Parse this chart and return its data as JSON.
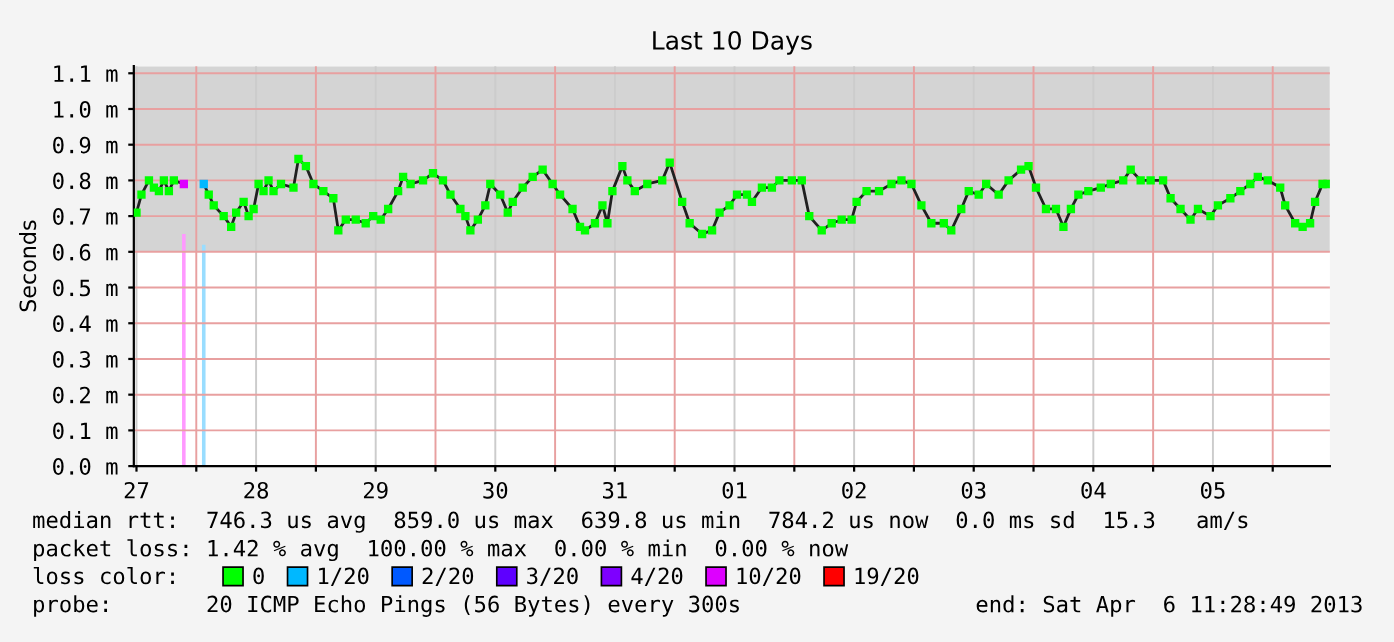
{
  "chart_data": {
    "type": "line",
    "title": "Last 10 Days",
    "ylabel": "Seconds",
    "legend_title": "loss color:",
    "xlim": [
      "2013-03-27T11:28",
      "2013-04-06T11:28"
    ],
    "ylim": [
      0,
      1.12
    ],
    "xticks": [
      {
        "value": "2013-03-27T12:00",
        "label": "27"
      },
      {
        "value": "2013-03-28T00:00",
        "label": null
      },
      {
        "value": "2013-03-28T12:00",
        "label": "28"
      },
      {
        "value": "2013-03-29T00:00",
        "label": null
      },
      {
        "value": "2013-03-29T12:00",
        "label": "29"
      },
      {
        "value": "2013-03-30T00:00",
        "label": null
      },
      {
        "value": "2013-03-30T12:00",
        "label": "30"
      },
      {
        "value": "2013-03-31T00:00",
        "label": null
      },
      {
        "value": "2013-03-31T12:00",
        "label": "31"
      },
      {
        "value": "2013-04-01T00:00",
        "label": null
      },
      {
        "value": "2013-04-01T12:00",
        "label": "01"
      },
      {
        "value": "2013-04-02T00:00",
        "label": null
      },
      {
        "value": "2013-04-02T12:00",
        "label": "02"
      },
      {
        "value": "2013-04-03T00:00",
        "label": null
      },
      {
        "value": "2013-04-03T12:00",
        "label": "03"
      },
      {
        "value": "2013-04-04T00:00",
        "label": null
      },
      {
        "value": "2013-04-04T12:00",
        "label": "04"
      },
      {
        "value": "2013-04-05T00:00",
        "label": null
      },
      {
        "value": "2013-04-05T12:00",
        "label": "05"
      },
      {
        "value": "2013-04-06T00:00",
        "label": null
      }
    ],
    "yticks": [
      {
        "value": 0,
        "label": "0.0 m"
      },
      {
        "value": 0.1,
        "label": "0.1 m"
      },
      {
        "value": 0.2,
        "label": "0.2 m"
      },
      {
        "value": 0.3,
        "label": "0.3 m"
      },
      {
        "value": 0.4,
        "label": "0.4 m"
      },
      {
        "value": 0.5,
        "label": "0.5 m"
      },
      {
        "value": 0.6,
        "label": "0.6 m"
      },
      {
        "value": 0.7,
        "label": "0.7 m"
      },
      {
        "value": 0.8,
        "label": "0.8 m"
      },
      {
        "value": 0.9,
        "label": "0.9 m"
      },
      {
        "value": 1.0,
        "label": "1.0 m"
      },
      {
        "value": 1.1,
        "label": "1.1 m"
      }
    ],
    "grid": true,
    "legend": "bottom",
    "bands": [
      {
        "axis": "y",
        "from": 0.6,
        "to": 1.12,
        "color": "#d4d4d4"
      }
    ],
    "series": [
      {
        "type": "bar",
        "x": [
          "2013-03-27T21:30",
          "2013-03-28T01:30"
        ],
        "values": [
          0.65,
          0.62
        ],
        "colors": [
          "#ff99ff",
          "#99ddff"
        ]
      },
      {
        "color": "#202020",
        "marker": "none",
        "x": [
          "2013-03-27T12:00",
          "2013-03-27T13:00",
          "2013-03-27T14:30",
          "2013-03-27T15:30",
          "2013-03-27T16:30",
          "2013-03-27T17:30",
          "2013-03-27T18:30",
          "2013-03-27T19:30",
          "2013-03-27T21:30",
          "2013-03-27T23:30",
          "2013-03-28T01:30",
          "2013-03-28T02:30",
          "2013-03-28T03:30",
          "2013-03-28T05:30",
          "2013-03-28T07:00",
          "2013-03-28T08:00",
          "2013-03-28T09:30",
          "2013-03-28T10:30",
          "2013-03-28T11:30",
          "2013-03-28T12:30",
          "2013-03-28T13:30",
          "2013-03-28T14:30",
          "2013-03-28T15:30",
          "2013-03-28T17:00",
          "2013-03-28T19:30",
          "2013-03-28T20:30",
          "2013-03-28T22:00",
          "2013-03-28T23:30",
          "2013-03-29T01:30",
          "2013-03-29T03:30",
          "2013-03-29T04:30",
          "2013-03-29T06:00",
          "2013-03-29T08:00",
          "2013-03-29T10:00",
          "2013-03-29T11:30",
          "2013-03-29T13:00",
          "2013-03-29T14:30",
          "2013-03-29T16:30",
          "2013-03-29T17:30",
          "2013-03-29T19:00",
          "2013-03-29T21:30",
          "2013-03-29T23:30",
          "2013-03-30T01:30",
          "2013-03-30T03:00",
          "2013-03-30T05:00",
          "2013-03-30T06:00",
          "2013-03-30T07:00",
          "2013-03-30T08:30",
          "2013-03-30T10:00",
          "2013-03-30T11:00",
          "2013-03-30T13:00",
          "2013-03-30T14:30",
          "2013-03-30T15:30",
          "2013-03-30T17:30",
          "2013-03-30T19:30",
          "2013-03-30T21:30",
          "2013-03-30T23:30",
          "2013-03-31T01:00",
          "2013-03-31T03:30",
          "2013-03-31T05:00",
          "2013-03-31T06:00",
          "2013-03-31T08:00",
          "2013-03-31T09:30",
          "2013-03-31T10:30",
          "2013-03-31T11:30",
          "2013-03-31T13:30",
          "2013-03-31T14:30",
          "2013-03-31T16:00",
          "2013-03-31T18:30",
          "2013-03-31T21:30",
          "2013-03-31T23:00",
          "2013-04-01T01:30",
          "2013-04-01T03:00",
          "2013-04-01T05:30",
          "2013-04-01T07:30",
          "2013-04-01T09:00",
          "2013-04-01T11:00",
          "2013-04-01T12:30",
          "2013-04-01T14:30",
          "2013-04-01T15:30",
          "2013-04-01T17:30",
          "2013-04-01T19:30",
          "2013-04-01T21:00",
          "2013-04-01T23:30",
          "2013-04-02T01:30",
          "2013-04-02T03:00",
          "2013-04-02T05:30",
          "2013-04-02T07:30",
          "2013-04-02T09:30",
          "2013-04-02T11:30",
          "2013-04-02T12:30",
          "2013-04-02T14:30",
          "2013-04-02T17:00",
          "2013-04-02T19:30",
          "2013-04-02T21:30",
          "2013-04-02T23:30",
          "2013-04-03T01:30",
          "2013-04-03T03:30",
          "2013-04-03T06:00",
          "2013-04-03T07:30",
          "2013-04-03T09:30",
          "2013-04-03T11:00",
          "2013-04-03T13:00",
          "2013-04-03T14:30",
          "2013-04-03T17:00",
          "2013-04-03T19:00",
          "2013-04-03T21:30",
          "2013-04-03T23:00",
          "2013-04-04T00:30",
          "2013-04-04T02:30",
          "2013-04-04T04:30",
          "2013-04-04T06:00",
          "2013-04-04T07:30",
          "2013-04-04T09:00",
          "2013-04-04T11:00",
          "2013-04-04T13:30",
          "2013-04-04T15:30",
          "2013-04-04T18:00",
          "2013-04-04T19:30",
          "2013-04-04T21:30",
          "2013-04-04T23:30",
          "2013-04-05T02:00",
          "2013-04-05T03:30",
          "2013-04-05T05:30",
          "2013-04-05T07:30",
          "2013-04-05T09:00",
          "2013-04-05T11:30",
          "2013-04-05T13:00",
          "2013-04-05T15:30",
          "2013-04-05T17:30",
          "2013-04-05T19:30",
          "2013-04-05T21:00",
          "2013-04-05T23:00",
          "2013-04-06T01:30",
          "2013-04-06T02:30",
          "2013-04-06T04:30",
          "2013-04-06T06:00",
          "2013-04-06T07:30",
          "2013-04-06T08:30",
          "2013-04-06T10:00",
          "2013-04-06T11:00"
        ],
        "values": [
          0.71,
          0.76,
          0.8,
          0.78,
          0.77,
          0.8,
          0.77,
          0.8,
          0.79,
          null,
          0.79,
          0.76,
          0.73,
          0.7,
          0.67,
          0.71,
          0.74,
          0.7,
          0.72,
          0.79,
          0.77,
          0.8,
          0.77,
          0.79,
          0.78,
          0.86,
          0.84,
          0.79,
          0.77,
          0.75,
          0.66,
          0.69,
          0.69,
          0.68,
          0.7,
          0.69,
          0.72,
          0.77,
          0.81,
          0.79,
          0.8,
          0.82,
          0.8,
          0.76,
          0.72,
          0.7,
          0.66,
          0.69,
          0.73,
          0.79,
          0.76,
          0.71,
          0.74,
          0.78,
          0.81,
          0.83,
          0.79,
          0.76,
          0.72,
          0.67,
          0.66,
          0.68,
          0.73,
          0.68,
          0.77,
          0.84,
          0.8,
          0.77,
          0.79,
          0.8,
          0.85,
          0.74,
          0.68,
          0.65,
          0.66,
          0.71,
          0.73,
          0.76,
          0.76,
          0.74,
          0.78,
          0.78,
          0.8,
          0.8,
          0.8,
          0.7,
          0.66,
          0.68,
          0.69,
          0.69,
          0.74,
          0.77,
          0.77,
          0.79,
          0.8,
          0.79,
          0.73,
          0.68,
          0.68,
          0.66,
          0.72,
          0.77,
          0.76,
          0.79,
          0.76,
          0.8,
          0.83,
          0.84,
          0.78,
          0.72,
          0.72,
          0.67,
          0.72,
          0.76,
          0.77,
          0.78,
          0.79,
          0.8,
          0.83,
          0.8,
          0.8,
          0.8,
          0.75,
          0.72,
          0.69,
          0.72,
          0.7,
          0.73,
          0.75,
          0.77,
          0.79,
          0.81,
          0.8,
          0.78,
          0.73,
          0.68,
          0.67,
          0.68,
          0.74,
          0.79,
          0.79
        ]
      },
      {
        "type": "scatter",
        "name": "0",
        "color": "#00ff00",
        "marker": "square",
        "x": [
          "2013-03-27T12:00",
          "2013-03-27T13:00",
          "2013-03-27T14:30",
          "2013-03-27T15:30",
          "2013-03-27T16:30",
          "2013-03-27T17:30",
          "2013-03-27T18:30",
          "2013-03-27T19:30",
          "2013-03-28T02:30",
          "2013-03-28T03:30",
          "2013-03-28T05:30",
          "2013-03-28T07:00",
          "2013-03-28T08:00",
          "2013-03-28T09:30",
          "2013-03-28T10:30",
          "2013-03-28T11:30",
          "2013-03-28T12:30",
          "2013-03-28T13:30",
          "2013-03-28T14:30",
          "2013-03-28T15:30",
          "2013-03-28T17:00",
          "2013-03-28T19:30",
          "2013-03-28T20:30",
          "2013-03-28T22:00",
          "2013-03-28T23:30",
          "2013-03-29T01:30",
          "2013-03-29T03:30",
          "2013-03-29T04:30",
          "2013-03-29T06:00",
          "2013-03-29T08:00",
          "2013-03-29T10:00",
          "2013-03-29T11:30",
          "2013-03-29T13:00",
          "2013-03-29T14:30",
          "2013-03-29T16:30",
          "2013-03-29T17:30",
          "2013-03-29T19:00",
          "2013-03-29T21:30",
          "2013-03-29T23:30",
          "2013-03-30T01:30",
          "2013-03-30T03:00",
          "2013-03-30T05:00",
          "2013-03-30T06:00",
          "2013-03-30T07:00",
          "2013-03-30T08:30",
          "2013-03-30T10:00",
          "2013-03-30T11:00",
          "2013-03-30T13:00",
          "2013-03-30T14:30",
          "2013-03-30T15:30",
          "2013-03-30T17:30",
          "2013-03-30T19:30",
          "2013-03-30T21:30",
          "2013-03-30T23:30",
          "2013-03-31T01:00",
          "2013-03-31T03:30",
          "2013-03-31T05:00",
          "2013-03-31T06:00",
          "2013-03-31T08:00",
          "2013-03-31T09:30",
          "2013-03-31T10:30",
          "2013-03-31T11:30",
          "2013-03-31T13:30",
          "2013-03-31T14:30",
          "2013-03-31T16:00",
          "2013-03-31T18:30",
          "2013-03-31T21:30",
          "2013-03-31T23:00",
          "2013-04-01T01:30",
          "2013-04-01T03:00",
          "2013-04-01T05:30",
          "2013-04-01T07:30",
          "2013-04-01T09:00",
          "2013-04-01T11:00",
          "2013-04-01T12:30",
          "2013-04-01T14:30",
          "2013-04-01T15:30",
          "2013-04-01T17:30",
          "2013-04-01T19:30",
          "2013-04-01T21:00",
          "2013-04-01T23:30",
          "2013-04-02T01:30",
          "2013-04-02T03:00",
          "2013-04-02T05:30",
          "2013-04-02T07:30",
          "2013-04-02T09:30",
          "2013-04-02T11:30",
          "2013-04-02T12:30",
          "2013-04-02T14:30",
          "2013-04-02T17:00",
          "2013-04-02T19:30",
          "2013-04-02T21:30",
          "2013-04-02T23:30",
          "2013-04-03T01:30",
          "2013-04-03T03:30",
          "2013-04-03T06:00",
          "2013-04-03T07:30",
          "2013-04-03T09:30",
          "2013-04-03T11:00",
          "2013-04-03T13:00",
          "2013-04-03T14:30",
          "2013-04-03T17:00",
          "2013-04-03T19:00",
          "2013-04-03T21:30",
          "2013-04-03T23:00",
          "2013-04-04T00:30",
          "2013-04-04T02:30",
          "2013-04-04T04:30",
          "2013-04-04T06:00",
          "2013-04-04T07:30",
          "2013-04-04T09:00",
          "2013-04-04T11:00",
          "2013-04-04T13:30",
          "2013-04-04T15:30",
          "2013-04-04T18:00",
          "2013-04-04T19:30",
          "2013-04-04T21:30",
          "2013-04-04T23:30",
          "2013-04-05T02:00",
          "2013-04-05T03:30",
          "2013-04-05T05:30",
          "2013-04-05T07:30",
          "2013-04-05T09:00",
          "2013-04-05T11:30",
          "2013-04-05T13:00",
          "2013-04-05T15:30",
          "2013-04-05T17:30",
          "2013-04-05T19:30",
          "2013-04-05T21:00",
          "2013-04-05T23:00",
          "2013-04-06T01:30",
          "2013-04-06T02:30",
          "2013-04-06T04:30",
          "2013-04-06T06:00",
          "2013-04-06T07:30",
          "2013-04-06T08:30",
          "2013-04-06T10:00",
          "2013-04-06T11:00"
        ],
        "values": [
          0.71,
          0.76,
          0.8,
          0.78,
          0.77,
          0.8,
          0.77,
          0.8,
          0.76,
          0.73,
          0.7,
          0.67,
          0.71,
          0.74,
          0.7,
          0.72,
          0.79,
          0.77,
          0.8,
          0.77,
          0.79,
          0.78,
          0.86,
          0.84,
          0.79,
          0.77,
          0.75,
          0.66,
          0.69,
          0.69,
          0.68,
          0.7,
          0.69,
          0.72,
          0.77,
          0.81,
          0.79,
          0.8,
          0.82,
          0.8,
          0.76,
          0.72,
          0.7,
          0.66,
          0.69,
          0.73,
          0.79,
          0.76,
          0.71,
          0.74,
          0.78,
          0.81,
          0.83,
          0.79,
          0.76,
          0.72,
          0.67,
          0.66,
          0.68,
          0.73,
          0.68,
          0.77,
          0.84,
          0.8,
          0.77,
          0.79,
          0.8,
          0.85,
          0.74,
          0.68,
          0.65,
          0.66,
          0.71,
          0.73,
          0.76,
          0.76,
          0.74,
          0.78,
          0.78,
          0.8,
          0.8,
          0.8,
          0.7,
          0.66,
          0.68,
          0.69,
          0.69,
          0.74,
          0.77,
          0.77,
          0.79,
          0.8,
          0.79,
          0.73,
          0.68,
          0.68,
          0.66,
          0.72,
          0.77,
          0.76,
          0.79,
          0.76,
          0.8,
          0.83,
          0.84,
          0.78,
          0.72,
          0.72,
          0.67,
          0.72,
          0.76,
          0.77,
          0.78,
          0.79,
          0.8,
          0.83,
          0.8,
          0.8,
          0.8,
          0.75,
          0.72,
          0.69,
          0.72,
          0.7,
          0.73,
          0.75,
          0.77,
          0.79,
          0.81,
          0.8,
          0.78,
          0.73,
          0.68,
          0.67,
          0.68,
          0.74,
          0.79,
          0.79
        ]
      },
      {
        "type": "scatter",
        "name": "1/20",
        "color": "#00b8ff",
        "marker": "square",
        "x": [
          "2013-03-28T01:30"
        ],
        "values": [
          0.79
        ]
      },
      {
        "type": "scatter",
        "name": "2/20",
        "color": "#0059ff",
        "marker": "square"
      },
      {
        "type": "scatter",
        "name": "3/20",
        "color": "#5e00ff",
        "marker": "square"
      },
      {
        "type": "scatter",
        "name": "4/20",
        "color": "#7e00ff",
        "marker": "square"
      },
      {
        "type": "scatter",
        "name": "10/20",
        "color": "#dd00ff",
        "marker": "square",
        "x": [
          "2013-03-27T21:30"
        ],
        "values": [
          0.79
        ]
      },
      {
        "type": "scatter",
        "name": "19/20",
        "color": "#ff0000",
        "marker": "square"
      }
    ],
    "annotations": [
      "median rtt:  746.3 us avg  859.0 us max  639.8 us min  784.2 us now  0.0 ms sd  15.3   am/s",
      "packet loss: 1.42 % avg  100.00 % max  0.00 % min  0.00 % now",
      "probe:       20 ICMP Echo Pings (56 Bytes) every 300s",
      "end: Sat Apr  6 11:28:49 2013"
    ]
  }
}
